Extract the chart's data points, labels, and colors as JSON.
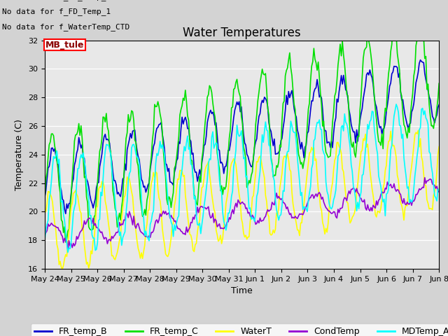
{
  "title": "Water Temperatures",
  "xlabel": "Time",
  "ylabel": "Temperature (C)",
  "ylim": [
    16,
    32
  ],
  "annotations": [
    "No data for f_FR_temp_A",
    "No data for f_FD_Temp_1",
    "No data for f_WaterTemp_CTD"
  ],
  "mb_tule_label": "MB_tule",
  "legend_entries": [
    "FR_temp_B",
    "FR_temp_C",
    "WaterT",
    "CondTemp",
    "MDTemp_A"
  ],
  "line_colors": {
    "FR_temp_B": "#0000cd",
    "FR_temp_C": "#00e000",
    "WaterT": "#ffff00",
    "CondTemp": "#9400d3",
    "MDTemp_A": "#00ffff"
  },
  "tick_labels": [
    "May 24",
    "May 25",
    "May 26",
    "May 27",
    "May 28",
    "May 29",
    "May 30",
    "May 31",
    "Jun 1",
    "Jun 2",
    "Jun 3",
    "Jun 4",
    "Jun 5",
    "Jun 6",
    "Jun 7",
    "Jun 8"
  ],
  "fig_facecolor": "#d3d3d3",
  "ax_facecolor": "#e8e8e8",
  "title_fontsize": 12,
  "axis_label_fontsize": 9,
  "tick_fontsize": 8,
  "legend_fontsize": 9,
  "ann_fontsize": 8
}
